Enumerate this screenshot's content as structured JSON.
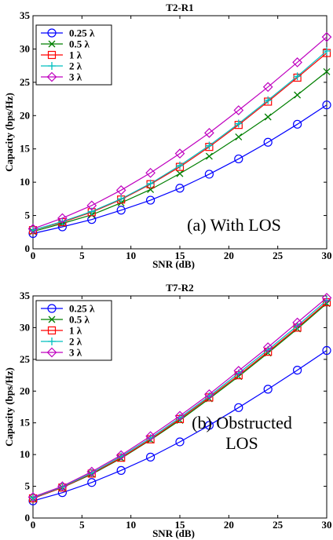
{
  "chart_data": [
    {
      "type": "line",
      "title": "T2-R1",
      "xlabel": "SNR (dB)",
      "ylabel": "Capacity (bps/Hz)",
      "xlim": [
        0,
        30
      ],
      "ylim": [
        0,
        35
      ],
      "xticks": [
        "0",
        "5",
        "10",
        "15",
        "20",
        "25",
        "30"
      ],
      "yticks": [
        "0",
        "5",
        "10",
        "15",
        "20",
        "25",
        "30",
        "35"
      ],
      "x": [
        0,
        3,
        6,
        9,
        12,
        15,
        18,
        21,
        24,
        27,
        30
      ],
      "legend_position": "top-left",
      "annotation": [
        "(a) With LOS"
      ],
      "series": [
        {
          "name": "0.25 λ",
          "color": "#0000ff",
          "marker": "circle",
          "values": [
            2.3,
            3.3,
            4.4,
            5.8,
            7.3,
            9.1,
            11.2,
            13.5,
            16.0,
            18.7,
            21.6
          ]
        },
        {
          "name": "0.5 λ",
          "color": "#007f00",
          "marker": "x",
          "values": [
            2.6,
            3.8,
            5.1,
            6.9,
            8.9,
            11.3,
            13.9,
            16.8,
            19.8,
            23.1,
            26.6
          ]
        },
        {
          "name": "1 λ",
          "color": "#ff0000",
          "marker": "square",
          "values": [
            2.8,
            4.0,
            5.5,
            7.4,
            9.7,
            12.3,
            15.3,
            18.6,
            22.1,
            25.7,
            29.4
          ]
        },
        {
          "name": "2 λ",
          "color": "#00bfbf",
          "marker": "plus",
          "values": [
            2.8,
            4.1,
            5.6,
            7.5,
            9.8,
            12.5,
            15.5,
            18.8,
            22.3,
            25.9,
            29.7
          ]
        },
        {
          "name": "3 λ",
          "color": "#bf00bf",
          "marker": "diamond",
          "values": [
            3.0,
            4.6,
            6.5,
            8.8,
            11.4,
            14.3,
            17.4,
            20.8,
            24.3,
            28.0,
            31.8
          ]
        }
      ]
    },
    {
      "type": "line",
      "title": "T7-R2",
      "xlabel": "SNR (dB)",
      "ylabel": "Capacity (bps/Hz)",
      "xlim": [
        0,
        30
      ],
      "ylim": [
        0,
        35
      ],
      "xticks": [
        "0",
        "5",
        "10",
        "15",
        "20",
        "25",
        "30"
      ],
      "yticks": [
        "0",
        "5",
        "10",
        "15",
        "20",
        "25",
        "30",
        "35"
      ],
      "x": [
        0,
        3,
        6,
        9,
        12,
        15,
        18,
        21,
        24,
        27,
        30
      ],
      "legend_position": "top-left",
      "annotation": [
        "(b) Obstructed",
        "LOS"
      ],
      "series": [
        {
          "name": "0.25 λ",
          "color": "#0000ff",
          "marker": "circle",
          "values": [
            2.7,
            4.0,
            5.6,
            7.5,
            9.6,
            12.0,
            14.6,
            17.4,
            20.3,
            23.3,
            26.4
          ]
        },
        {
          "name": "0.5 λ",
          "color": "#007f00",
          "marker": "x",
          "values": [
            3.1,
            4.8,
            6.9,
            9.4,
            12.3,
            15.4,
            18.8,
            22.3,
            26.0,
            29.8,
            33.8
          ]
        },
        {
          "name": "1 λ",
          "color": "#ff0000",
          "marker": "square",
          "values": [
            3.1,
            4.8,
            7.0,
            9.5,
            12.4,
            15.6,
            19.0,
            22.5,
            26.2,
            30.0,
            34.0
          ]
        },
        {
          "name": "2 λ",
          "color": "#00bfbf",
          "marker": "plus",
          "values": [
            3.2,
            4.9,
            7.1,
            9.7,
            12.6,
            15.8,
            19.2,
            22.8,
            26.5,
            30.3,
            34.3
          ]
        },
        {
          "name": "3 λ",
          "color": "#bf00bf",
          "marker": "diamond",
          "values": [
            3.3,
            5.0,
            7.3,
            9.9,
            12.9,
            16.1,
            19.5,
            23.2,
            26.9,
            30.8,
            34.7
          ]
        }
      ]
    }
  ]
}
